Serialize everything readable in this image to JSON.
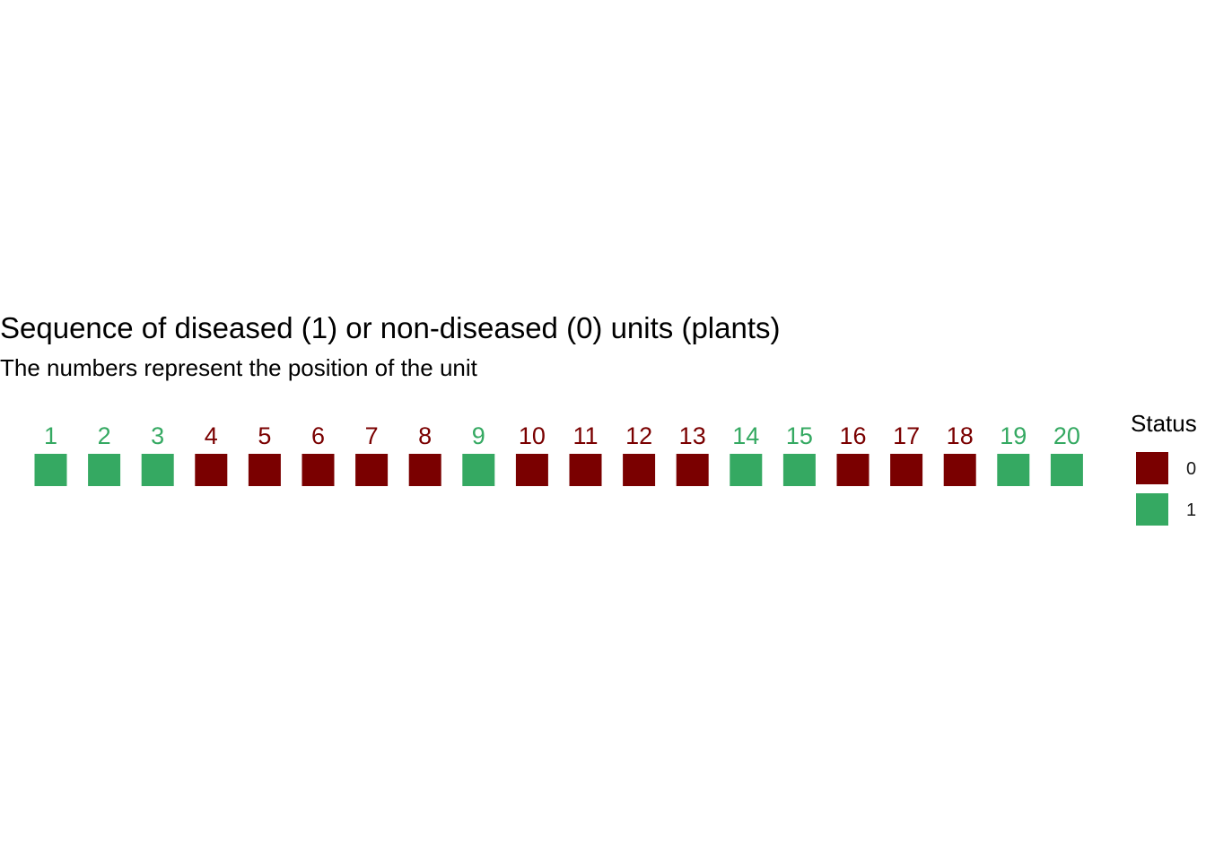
{
  "chart_data": {
    "type": "heatmap",
    "title": "Sequence of diseased (1) or non-diseased (0) units (plants)",
    "subtitle": "The numbers represent the position of the unit",
    "positions": [
      1,
      2,
      3,
      4,
      5,
      6,
      7,
      8,
      9,
      10,
      11,
      12,
      13,
      14,
      15,
      16,
      17,
      18,
      19,
      20
    ],
    "status": [
      1,
      1,
      1,
      0,
      0,
      0,
      0,
      0,
      1,
      0,
      0,
      0,
      0,
      1,
      1,
      0,
      0,
      0,
      1,
      1
    ],
    "legend": {
      "title": "Status",
      "placement": "right",
      "entries": [
        {
          "label": "0",
          "color": "#7A0000"
        },
        {
          "label": "1",
          "color": "#35A962"
        }
      ]
    },
    "colors": {
      "0": "#7A0000",
      "1": "#35A962"
    },
    "grid": false
  }
}
